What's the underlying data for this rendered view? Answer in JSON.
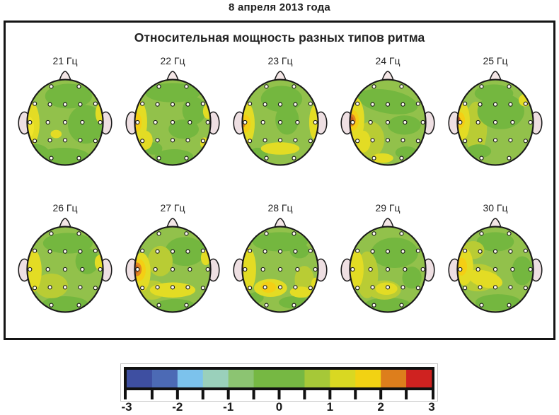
{
  "page": {
    "date_label": "8 апреля 2013 года"
  },
  "panel": {
    "title": "Относительная мощность разных типов ритма"
  },
  "palette": {
    "G1": "#74b73f",
    "G2": "#92c14b",
    "G3": "#b9cc34",
    "Y": "#e3dc24",
    "YB": "#efe42b",
    "GOLD": "#f4cf14",
    "O": "#e0861f",
    "DO": "#c7601f",
    "skin": "#eedfe2",
    "outline": "#1a1a1a",
    "electrode_fill": "#fffef2"
  },
  "chart_data": {
    "type": "heatmap",
    "subtype": "eeg-scalp-topography-grid",
    "title": "Относительная мощность разных типов ритма",
    "date": "8 апреля 2013 года",
    "unit": "Гц",
    "frequencies_hz": [
      21,
      22,
      23,
      24,
      25,
      26,
      27,
      28,
      29,
      30
    ],
    "grid": {
      "rows": 2,
      "cols": 5
    },
    "electrode_count": 19,
    "electrode_positions": [
      [
        -20,
        -52
      ],
      [
        20,
        -52
      ],
      [
        -44,
        -27
      ],
      [
        -22,
        -26
      ],
      [
        0,
        -26
      ],
      [
        22,
        -26
      ],
      [
        44,
        -27
      ],
      [
        -51,
        0
      ],
      [
        -25,
        0
      ],
      [
        0,
        0
      ],
      [
        25,
        0
      ],
      [
        51,
        0
      ],
      [
        -44,
        27
      ],
      [
        -22,
        26
      ],
      [
        0,
        26
      ],
      [
        22,
        26
      ],
      [
        44,
        27
      ],
      [
        -20,
        52
      ],
      [
        20,
        52
      ]
    ],
    "colorbar": {
      "min": -3,
      "max": 3,
      "segment_step": 0.5,
      "tick_labels": [
        "-3",
        "-2",
        "-1",
        "0",
        "1",
        "2",
        "3"
      ],
      "segment_colors": [
        "#3e4fa1",
        "#4c6ab5",
        "#7cc2ec",
        "#9ad0bb",
        "#8cc472",
        "#76b843",
        "#76b843",
        "#a6c838",
        "#d9d822",
        "#f2d213",
        "#dd7e1c",
        "#cf2220"
      ]
    },
    "maps": [
      {
        "label": "21 Гц",
        "frequency_hz": 21,
        "base": "G2",
        "blobs": [
          [
            "G1",
            5,
            -38,
            34,
            18,
            0
          ],
          [
            "G1",
            30,
            3,
            26,
            28,
            0
          ],
          [
            "G1",
            -2,
            50,
            38,
            13,
            0
          ],
          [
            "G1",
            -36,
            42,
            15,
            9,
            25
          ],
          [
            "Y",
            -49,
            2,
            12,
            31,
            0
          ],
          [
            "YB",
            -52,
            7,
            7,
            15,
            0
          ],
          [
            "Y",
            -13,
            17,
            8,
            6,
            0
          ],
          [
            "Y",
            52,
            -13,
            8,
            15,
            0
          ]
        ]
      },
      {
        "label": "22 Гц",
        "frequency_hz": 22,
        "base": "G2",
        "blobs": [
          [
            "G1",
            0,
            -43,
            40,
            14,
            0
          ],
          [
            "G1",
            31,
            -17,
            17,
            20,
            0
          ],
          [
            "G1",
            16,
            10,
            22,
            14,
            0
          ],
          [
            "G1",
            2,
            50,
            28,
            11,
            0
          ],
          [
            "G1",
            -28,
            38,
            13,
            9,
            0
          ],
          [
            "Y",
            -49,
            0,
            12,
            32,
            0
          ],
          [
            "Y",
            -40,
            26,
            11,
            14,
            0
          ],
          [
            "GOLD",
            -52,
            0,
            7,
            14,
            0
          ],
          [
            "O",
            -56,
            1,
            4,
            5,
            0
          ],
          [
            "Y",
            51,
            -16,
            7,
            11,
            0
          ],
          [
            "Y",
            46,
            30,
            6,
            8,
            0
          ]
        ]
      },
      {
        "label": "23 Гц",
        "frequency_hz": 23,
        "base": "G2",
        "blobs": [
          [
            "G1",
            2,
            -34,
            30,
            19,
            0
          ],
          [
            "G1",
            10,
            -4,
            17,
            22,
            0
          ],
          [
            "G1",
            -32,
            46,
            14,
            9,
            0
          ],
          [
            "Y",
            -49,
            2,
            12,
            31,
            0
          ],
          [
            "Y",
            51,
            0,
            9,
            26,
            0
          ],
          [
            "Y",
            0,
            38,
            28,
            9,
            0
          ],
          [
            "GOLD",
            -51,
            2,
            8,
            13,
            0
          ],
          [
            "O",
            -55,
            2,
            4.5,
            6,
            0
          ]
        ]
      },
      {
        "label": "24 Гц",
        "frequency_hz": 24,
        "base": "G2",
        "blobs": [
          [
            "G1",
            0,
            -30,
            44,
            17,
            10
          ],
          [
            "G1",
            24,
            4,
            24,
            14,
            0
          ],
          [
            "G1",
            27,
            44,
            16,
            9,
            0
          ],
          [
            "G3",
            -25,
            25,
            20,
            26,
            0
          ],
          [
            "Y",
            -47,
            -4,
            13,
            32,
            0
          ],
          [
            "Y",
            -36,
            28,
            11,
            16,
            0
          ],
          [
            "Y",
            -8,
            52,
            16,
            7,
            0
          ],
          [
            "GOLD",
            -51,
            -3,
            9,
            15,
            0
          ],
          [
            "O",
            -53,
            -3,
            6.5,
            9,
            0
          ],
          [
            "DO",
            -54,
            -3,
            4.5,
            6,
            0
          ]
        ]
      },
      {
        "label": "25 Гц",
        "frequency_hz": 25,
        "base": "G2",
        "blobs": [
          [
            "G3",
            -28,
            8,
            16,
            38,
            0
          ],
          [
            "G1",
            8,
            -16,
            34,
            26,
            0
          ],
          [
            "G1",
            -2,
            -42,
            28,
            13,
            0
          ],
          [
            "G1",
            -24,
            42,
            18,
            10,
            0
          ],
          [
            "Y",
            -48,
            -2,
            11,
            28,
            0
          ],
          [
            "Y",
            43,
            -32,
            9,
            9,
            0
          ],
          [
            "GOLD",
            -52,
            -3,
            8,
            12,
            0
          ],
          [
            "DO",
            -55,
            -3,
            4.5,
            6,
            0
          ]
        ]
      },
      {
        "label": "26 Гц",
        "frequency_hz": 26,
        "base": "G2",
        "blobs": [
          [
            "G1",
            4,
            -38,
            36,
            15,
            0
          ],
          [
            "G1",
            32,
            -12,
            17,
            19,
            0
          ],
          [
            "G1",
            0,
            50,
            33,
            11,
            0
          ],
          [
            "G3",
            -20,
            24,
            24,
            18,
            0
          ],
          [
            "Y",
            -47,
            2,
            13,
            31,
            0
          ],
          [
            "Y",
            50,
            -10,
            7,
            11,
            0
          ]
        ]
      },
      {
        "label": "27 Гц",
        "frequency_hz": 27,
        "base": "G2",
        "blobs": [
          [
            "G1",
            18,
            -26,
            29,
            21,
            0
          ],
          [
            "G1",
            4,
            52,
            28,
            9,
            0
          ],
          [
            "G3",
            -18,
            -12,
            18,
            22,
            0
          ],
          [
            "G3",
            -30,
            30,
            20,
            14,
            0
          ],
          [
            "Y",
            -45,
            4,
            13,
            28,
            0
          ],
          [
            "Y",
            0,
            30,
            33,
            11,
            0
          ],
          [
            "Y",
            48,
            -17,
            7,
            11,
            0
          ],
          [
            "GOLD",
            -49,
            1,
            10,
            16,
            0
          ],
          [
            "O",
            -52,
            0,
            7,
            10,
            0
          ],
          [
            "DO",
            -54,
            0,
            4.5,
            6.5,
            0
          ]
        ]
      },
      {
        "label": "28 Гц",
        "frequency_hz": 28,
        "base": "G2",
        "blobs": [
          [
            "G1",
            0,
            -40,
            40,
            14,
            0
          ],
          [
            "G1",
            28,
            -27,
            14,
            11,
            0
          ],
          [
            "G1",
            -35,
            41,
            11,
            8,
            0
          ],
          [
            "G1",
            20,
            48,
            22,
            9,
            0
          ],
          [
            "G3",
            35,
            15,
            14,
            20,
            0
          ],
          [
            "Y",
            -47,
            0,
            12,
            32,
            0
          ],
          [
            "Y",
            -14,
            27,
            24,
            13,
            0
          ],
          [
            "Y",
            30,
            33,
            16,
            8,
            0
          ],
          [
            "Y",
            51,
            22,
            6,
            10,
            0
          ],
          [
            "GOLD",
            -17,
            26,
            11,
            8,
            0
          ],
          [
            "O",
            -56,
            0,
            3.5,
            5,
            0
          ]
        ]
      },
      {
        "label": "29 Гц",
        "frequency_hz": 29,
        "base": "G2",
        "blobs": [
          [
            "G1",
            10,
            -24,
            34,
            22,
            0
          ],
          [
            "G1",
            35,
            12,
            14,
            16,
            0
          ],
          [
            "G1",
            0,
            51,
            33,
            10,
            0
          ],
          [
            "G3",
            -30,
            8,
            16,
            34,
            0
          ],
          [
            "G3",
            -5,
            30,
            24,
            14,
            0
          ],
          [
            "Y",
            -46,
            0,
            11,
            28,
            0
          ],
          [
            "Y",
            -2,
            28,
            16,
            9,
            0
          ]
        ]
      },
      {
        "label": "30 Гц",
        "frequency_hz": 30,
        "base": "G2",
        "blobs": [
          [
            "G1",
            0,
            -40,
            27,
            14,
            0
          ],
          [
            "G1",
            39,
            2,
            15,
            21,
            0
          ],
          [
            "G1",
            4,
            48,
            33,
            12,
            0
          ],
          [
            "G3",
            -32,
            -28,
            16,
            13,
            0
          ],
          [
            "G3",
            -25,
            12,
            28,
            20,
            0
          ],
          [
            "Y",
            -45,
            -4,
            13,
            27,
            0
          ],
          [
            "Y",
            -15,
            14,
            26,
            12,
            15
          ],
          [
            "GOLD",
            -49,
            -4,
            8,
            13,
            0
          ]
        ]
      }
    ]
  }
}
